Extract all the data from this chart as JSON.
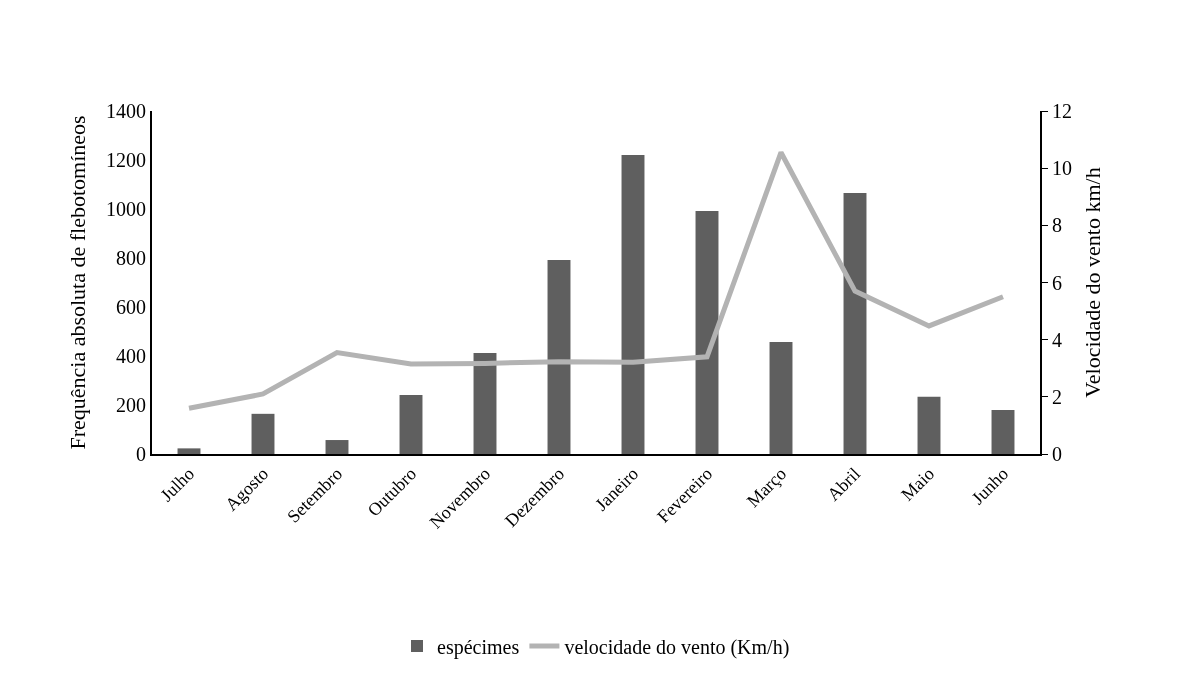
{
  "chart_data": {
    "type": "bar",
    "categories": [
      "Julho",
      "Agosto",
      "Setembro",
      "Outubro",
      "Novembro",
      "Dezembro",
      "Janeiro",
      "Fevereiro",
      "Março",
      "Abril",
      "Maio",
      "Junho"
    ],
    "series": [
      {
        "name": "espécimes",
        "color": "#5f5f5f",
        "values": [
          23,
          164,
          57,
          241,
          412,
          792,
          1220,
          992,
          457,
          1065,
          234,
          180
        ]
      },
      {
        "name": "velocidade do vento (Km/h)",
        "type": "line",
        "axis": "y2",
        "color": "#b3b3b3",
        "values": [
          1.6,
          2.1,
          3.55,
          3.15,
          3.17,
          3.23,
          3.21,
          3.4,
          10.55,
          5.7,
          4.48,
          5.5
        ]
      }
    ],
    "ylabel": "Frequência absoluta de flebotomíneos",
    "y2label": "Velocidade do vento km/h",
    "ylim": [
      0,
      1400
    ],
    "yticks": [
      0,
      200,
      400,
      600,
      800,
      1000,
      1200,
      1400
    ],
    "y2lim": [
      0,
      12
    ],
    "y2ticks": [
      0,
      2,
      4,
      6,
      8,
      10,
      12
    ],
    "grid": false,
    "legend": "bottom"
  }
}
